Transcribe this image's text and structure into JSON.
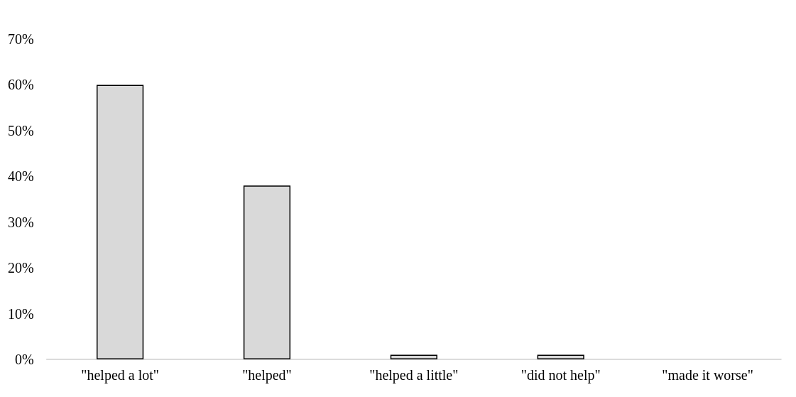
{
  "chart_data": {
    "type": "bar",
    "categories": [
      "\"helped a lot\"",
      "\"helped\"",
      "\"helped a little\"",
      "\"did not help\"",
      "\"made it worse\""
    ],
    "values": [
      60,
      38,
      1,
      1,
      0
    ],
    "color": "#d9d9d9",
    "ylim": [
      0,
      70
    ],
    "yticks": [
      {
        "value": 0,
        "label": "0%"
      },
      {
        "value": 10,
        "label": "10%"
      },
      {
        "value": 20,
        "label": "20%"
      },
      {
        "value": 30,
        "label": "30%"
      },
      {
        "value": 40,
        "label": "40%"
      },
      {
        "value": 50,
        "label": "50%"
      },
      {
        "value": 60,
        "label": "60%"
      },
      {
        "value": 70,
        "label": "70%"
      }
    ],
    "grid": false
  }
}
